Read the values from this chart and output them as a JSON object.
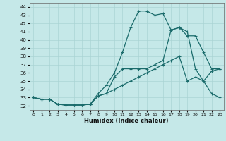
{
  "xlabel": "Humidex (Indice chaleur)",
  "xlim": [
    -0.5,
    23.5
  ],
  "ylim": [
    31.5,
    44.5
  ],
  "yticks": [
    32,
    33,
    34,
    35,
    36,
    37,
    38,
    39,
    40,
    41,
    42,
    43,
    44
  ],
  "xticks": [
    0,
    1,
    2,
    3,
    4,
    5,
    6,
    7,
    8,
    9,
    10,
    11,
    12,
    13,
    14,
    15,
    16,
    17,
    18,
    19,
    20,
    21,
    22,
    23
  ],
  "background_color": "#c5e8e8",
  "line_color": "#1a6b6b",
  "grid_color": "#aad4d4",
  "line1_x": [
    0,
    1,
    2,
    3,
    4,
    5,
    6,
    7,
    8,
    9,
    10,
    11,
    12,
    13,
    14,
    15,
    16,
    17,
    18,
    19,
    20,
    21,
    22,
    23
  ],
  "line1_y": [
    33.0,
    32.8,
    32.8,
    32.2,
    32.1,
    32.1,
    32.1,
    32.2,
    33.2,
    33.5,
    34.0,
    34.5,
    35.0,
    35.5,
    36.0,
    36.5,
    37.0,
    37.5,
    38.0,
    35.0,
    35.5,
    35.0,
    36.2,
    36.5
  ],
  "line2_x": [
    0,
    1,
    2,
    3,
    4,
    5,
    6,
    7,
    8,
    9,
    10,
    11,
    12,
    13,
    14,
    15,
    16,
    17,
    18,
    19,
    20,
    21,
    22,
    23
  ],
  "line2_y": [
    33.0,
    32.8,
    32.8,
    32.2,
    32.1,
    32.1,
    32.1,
    32.2,
    33.5,
    34.5,
    36.0,
    38.5,
    41.5,
    43.5,
    43.5,
    43.0,
    43.2,
    41.2,
    41.5,
    40.5,
    40.5,
    38.5,
    36.5,
    36.5
  ],
  "line3_x": [
    0,
    1,
    2,
    3,
    4,
    5,
    6,
    7,
    8,
    9,
    10,
    11,
    12,
    13,
    14,
    15,
    16,
    17,
    18,
    19,
    20,
    21,
    22,
    23
  ],
  "line3_y": [
    33.0,
    32.8,
    32.8,
    32.2,
    32.1,
    32.1,
    32.1,
    32.2,
    33.2,
    33.5,
    35.5,
    36.5,
    36.5,
    36.5,
    36.5,
    37.0,
    37.5,
    41.2,
    41.5,
    41.0,
    36.5,
    35.0,
    33.5,
    33.0
  ]
}
